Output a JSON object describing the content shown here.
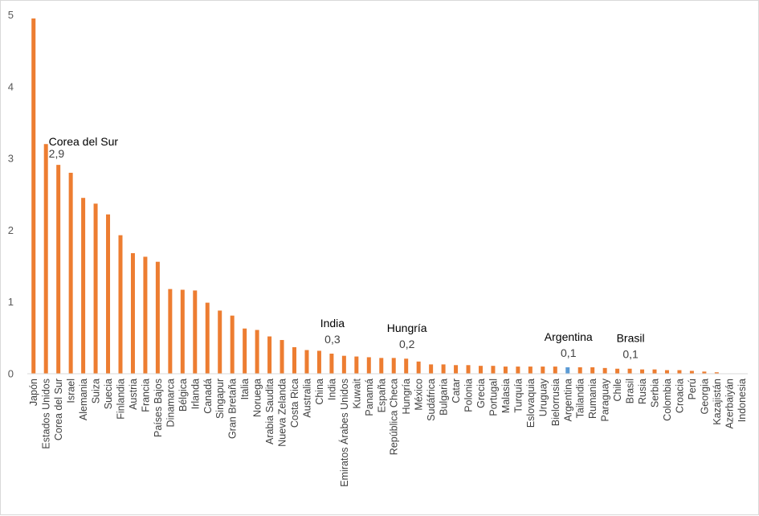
{
  "chart_data": {
    "type": "bar",
    "title": "",
    "xlabel": "",
    "ylabel": "",
    "ylim": [
      0,
      5
    ],
    "yticks": [
      0,
      1,
      2,
      3,
      4,
      5
    ],
    "grid": false,
    "legend": "none",
    "colors": {
      "default": "#ed7d31",
      "highlight": "#5b9bd5",
      "axis": "#d9d9d9"
    },
    "highlight": [
      "Argentina"
    ],
    "categories": [
      "Japón",
      "Estados Unidos",
      "Corea del Sur",
      "Israel",
      "Alemania",
      "Suiza",
      "Suecia",
      "Finlandia",
      "Austria",
      "Francia",
      "Países Bajos",
      "Dinamarca",
      "Bélgica",
      "Irlanda",
      "Canadá",
      "Singapur",
      "Gran Bretaña",
      "Italia",
      "Noruega",
      "Arabia Saudita",
      "Nueva Zelanda",
      "Costa Rica",
      "Australia",
      "China",
      "India",
      "Emiratos Árabes Unidos",
      "Kuwait",
      "Panamá",
      "España",
      "República Checa",
      "Hungría",
      "México",
      "Sudáfrica",
      "Bulgaria",
      "Catar",
      "Polonia",
      "Grecia",
      "Portugal",
      "Malasia",
      "Turquía",
      "Eslovaquia",
      "Uruguay",
      "Bielorrusia",
      "Argentina",
      "Tailandia",
      "Rumania",
      "Paraguay",
      "Chile",
      "Brasil",
      "Rusia",
      "Serbia",
      "Colombia",
      "Croacia",
      "Perú",
      "Georgia",
      "Kazajistán",
      "Azerbaiyán",
      "Indonesia"
    ],
    "values": [
      4.95,
      3.2,
      2.91,
      2.8,
      2.45,
      2.37,
      2.22,
      1.93,
      1.68,
      1.63,
      1.56,
      1.18,
      1.17,
      1.16,
      0.99,
      0.88,
      0.81,
      0.63,
      0.61,
      0.52,
      0.47,
      0.37,
      0.33,
      0.32,
      0.28,
      0.25,
      0.24,
      0.23,
      0.22,
      0.22,
      0.21,
      0.17,
      0.13,
      0.13,
      0.12,
      0.12,
      0.11,
      0.11,
      0.1,
      0.1,
      0.1,
      0.1,
      0.1,
      0.09,
      0.09,
      0.09,
      0.08,
      0.07,
      0.07,
      0.06,
      0.06,
      0.05,
      0.05,
      0.04,
      0.03,
      0.02,
      0.0,
      0.0
    ],
    "annotations": [
      {
        "category": "Corea del Sur",
        "label": "Corea del Sur",
        "value_label": "2,9"
      },
      {
        "category": "India",
        "label": "India",
        "value_label": "0,3"
      },
      {
        "category": "Hungría",
        "label": "Hungría",
        "value_label": "0,2"
      },
      {
        "category": "Argentina",
        "label": "Argentina",
        "value_label": "0,1"
      },
      {
        "category": "Brasil",
        "label": "Brasil",
        "value_label": "0,1"
      }
    ]
  }
}
